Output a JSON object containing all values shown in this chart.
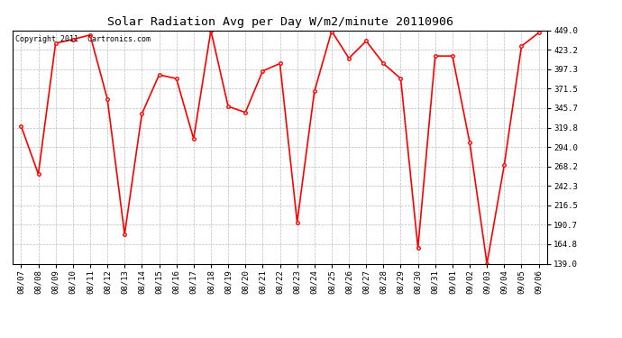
{
  "title": "Solar Radiation Avg per Day W/m2/minute 20110906",
  "copyright": "Copyright 2011  Cartronics.com",
  "dates": [
    "08/07",
    "08/08",
    "08/09",
    "08/10",
    "08/11",
    "08/12",
    "08/13",
    "08/14",
    "08/15",
    "08/16",
    "08/17",
    "08/18",
    "08/19",
    "08/20",
    "08/21",
    "08/22",
    "08/23",
    "08/24",
    "08/25",
    "08/26",
    "08/27",
    "08/28",
    "08/29",
    "08/30",
    "08/31",
    "09/01",
    "09/02",
    "09/03",
    "09/04",
    "09/05",
    "09/06"
  ],
  "values": [
    322,
    258,
    432,
    437,
    443,
    358,
    178,
    338,
    390,
    385,
    305,
    449,
    348,
    340,
    395,
    405,
    194,
    368,
    448,
    412,
    435,
    405,
    385,
    160,
    415,
    415,
    300,
    139,
    270,
    428,
    446
  ],
  "ymin": 139.0,
  "ymax": 449.0,
  "yticks": [
    139.0,
    164.8,
    190.7,
    216.5,
    242.3,
    268.2,
    294.0,
    319.8,
    345.7,
    371.5,
    397.3,
    423.2,
    449.0
  ],
  "line_color": "#ff0000",
  "marker_color": "#ff0000",
  "bg_color": "#ffffff",
  "grid_color": "#bbbbbb",
  "title_fontsize": 9.5,
  "tick_fontsize": 6.5,
  "copyright_fontsize": 6.0
}
